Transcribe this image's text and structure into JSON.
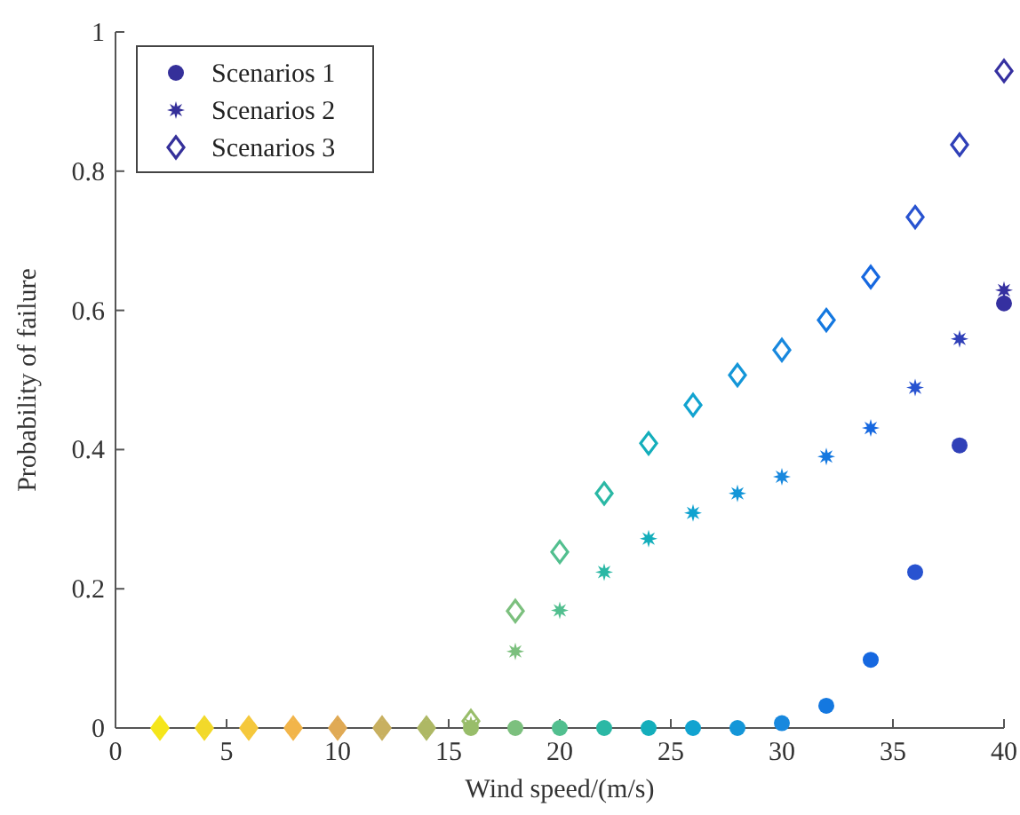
{
  "chart_data": {
    "type": "scatter",
    "xlabel": "Wind speed/(m/s)",
    "ylabel": "Probability of failure",
    "x": [
      2,
      4,
      6,
      8,
      10,
      12,
      14,
      16,
      18,
      20,
      22,
      24,
      26,
      28,
      30,
      32,
      34,
      36,
      38,
      40
    ],
    "xlim": [
      0,
      40
    ],
    "xticks": [
      0,
      5,
      10,
      15,
      20,
      25,
      30,
      35,
      40
    ],
    "ylim": [
      0,
      1
    ],
    "yticks": [
      0,
      0.2,
      0.4,
      0.6,
      0.8,
      1
    ],
    "grid": false,
    "legend": "top left",
    "series": [
      {
        "name": "Scenarios 1",
        "marker": "circle",
        "color": "#35309a",
        "values": [
          0,
          0,
          0,
          0,
          0,
          0,
          0,
          0,
          0,
          0,
          0,
          0,
          0,
          0,
          0.007,
          0.032,
          0.098,
          0.224,
          0.406,
          0.61
        ],
        "colors": [
          "#f5e61a",
          "#f2d92a",
          "#f5c83c",
          "#f2b54a",
          "#e0aa55",
          "#c8b060",
          "#aeb865",
          "#98bd6a",
          "#7cc07e",
          "#52bf8f",
          "#2bb8a5",
          "#14aebb",
          "#11a3d0",
          "#1496d8",
          "#1888de",
          "#1478e0",
          "#1668e0",
          "#2853d0",
          "#3040b8",
          "#3530a0"
        ]
      },
      {
        "name": "Scenarios 2",
        "marker": "star",
        "color": "#35309a",
        "values": [
          null,
          null,
          null,
          null,
          null,
          null,
          null,
          0.005,
          0.11,
          0.169,
          0.224,
          0.272,
          0.309,
          0.337,
          0.361,
          0.39,
          0.431,
          0.489,
          0.559,
          0.629
        ],
        "colors": [
          null,
          null,
          null,
          null,
          null,
          null,
          null,
          "#98bd6a",
          "#7cc07e",
          "#52bf8f",
          "#2bb8a5",
          "#14aebb",
          "#11a3d0",
          "#1496d8",
          "#1888de",
          "#1478e0",
          "#1668e0",
          "#2853d0",
          "#3040b8",
          "#3530a0"
        ]
      },
      {
        "name": "Scenarios 3",
        "marker": "diamond",
        "color": "#35309a",
        "values": [
          0,
          0,
          0,
          0,
          0,
          0,
          0,
          0.01,
          0.168,
          0.253,
          0.337,
          0.409,
          0.464,
          0.507,
          0.543,
          0.586,
          0.648,
          0.734,
          0.838,
          0.944
        ],
        "colors": [
          "#f5e61a",
          "#f2d92a",
          "#f5c83c",
          "#f2b54a",
          "#e0aa55",
          "#c8b060",
          "#aeb865",
          "#98bd6a",
          "#7cc07e",
          "#52bf8f",
          "#2bb8a5",
          "#14aebb",
          "#11a3d0",
          "#1496d8",
          "#1888de",
          "#1478e0",
          "#1668e0",
          "#2853d0",
          "#3040b8",
          "#3530a0"
        ]
      }
    ]
  }
}
